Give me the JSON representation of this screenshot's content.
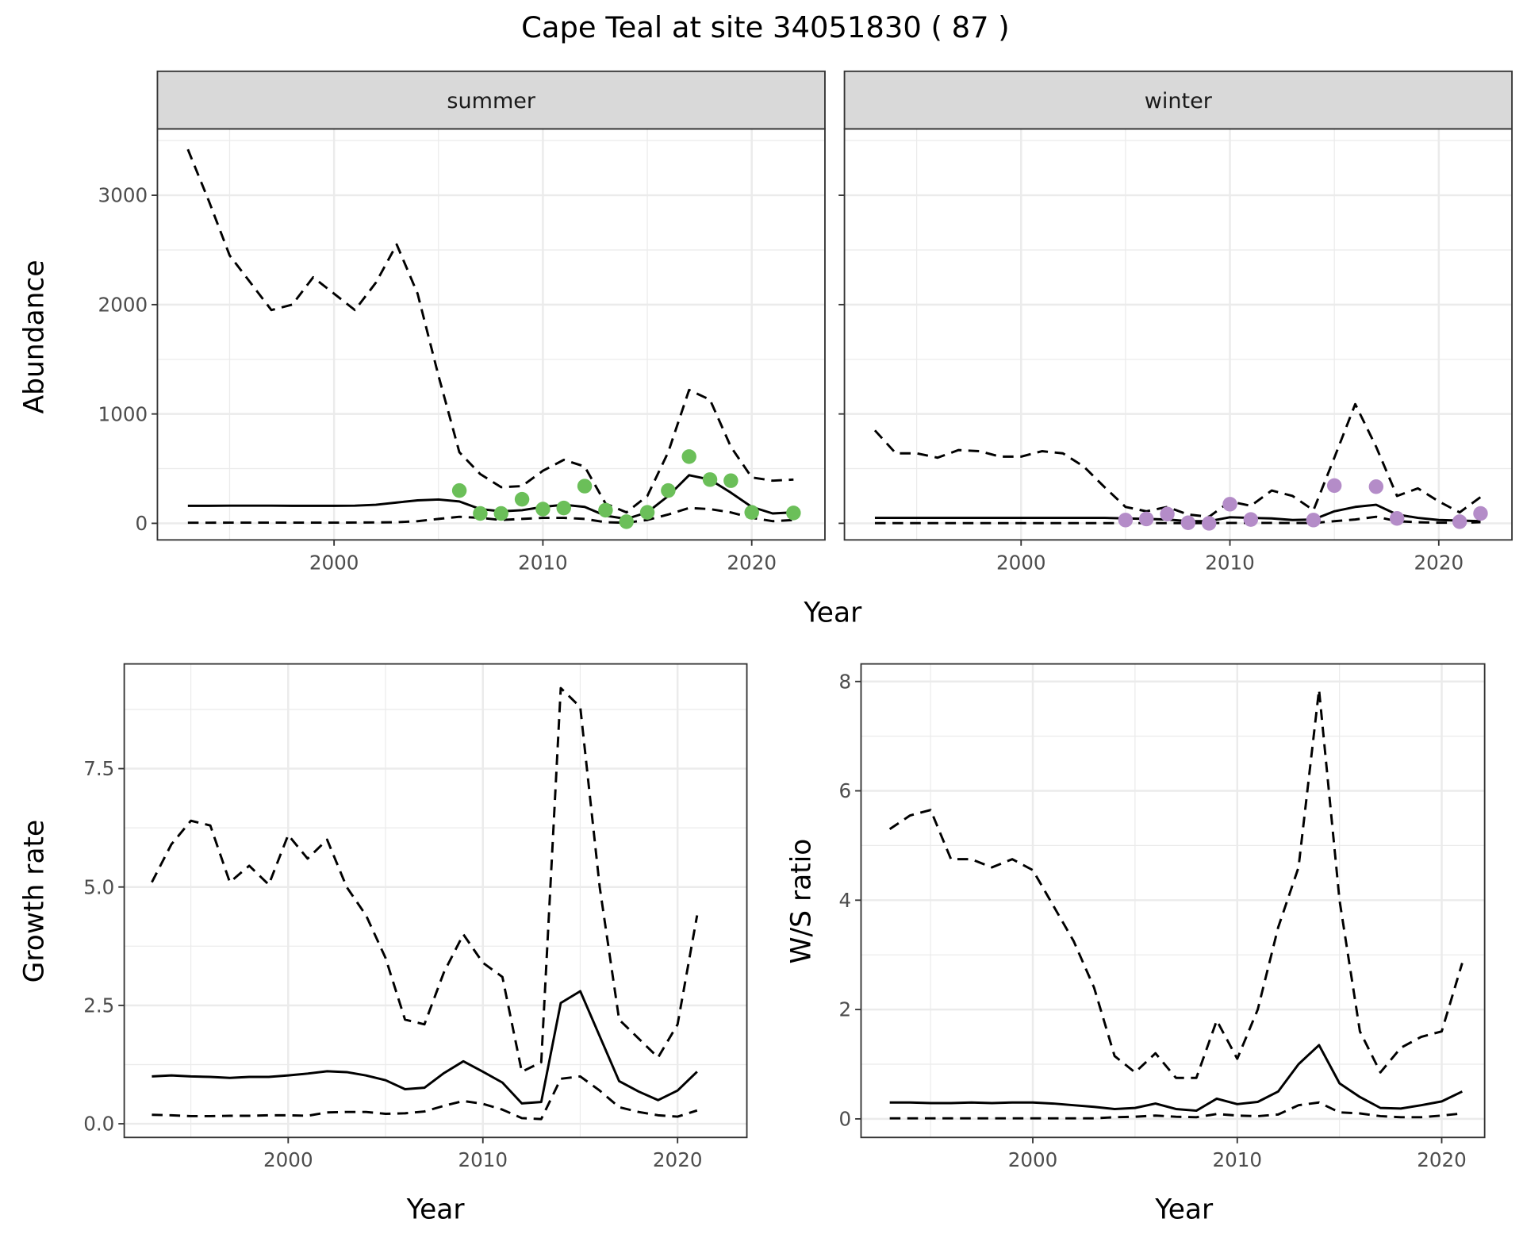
{
  "title": "Cape Teal at site 34051830 ( 87 )",
  "colors": {
    "summer_points": "#6BBF59",
    "winter_points": "#B48CC8",
    "line": "#000000",
    "grid": "#EBEBEB",
    "strip": "#D9D9D9"
  },
  "chart_data": [
    {
      "id": "summer",
      "type": "line",
      "strip_label": "summer",
      "xlabel": "Year",
      "ylabel": "Abundance",
      "x_ticks": [
        2000,
        2010,
        2020
      ],
      "y_ticks": [
        0,
        1000,
        2000,
        3000
      ],
      "y_tick_labels": [
        "0",
        "1000",
        "2000",
        "3000"
      ],
      "grid": true,
      "x": [
        1993,
        1994,
        1995,
        1996,
        1997,
        1998,
        1999,
        2000,
        2001,
        2002,
        2003,
        2004,
        2005,
        2006,
        2007,
        2008,
        2009,
        2010,
        2011,
        2012,
        2013,
        2014,
        2015,
        2016,
        2017,
        2018,
        2019,
        2020,
        2021,
        2022
      ],
      "series": [
        {
          "name": "upper",
          "style": "dashed",
          "values": [
            3420,
            2950,
            2450,
            2200,
            1950,
            2000,
            2250,
            2100,
            1950,
            2200,
            2550,
            2100,
            1350,
            650,
            450,
            330,
            340,
            480,
            580,
            520,
            180,
            100,
            250,
            650,
            1220,
            1130,
            700,
            420,
            390,
            400
          ]
        },
        {
          "name": "estimate",
          "style": "solid",
          "values": [
            160,
            160,
            162,
            162,
            162,
            160,
            160,
            160,
            162,
            170,
            190,
            210,
            218,
            200,
            130,
            110,
            120,
            150,
            170,
            150,
            70,
            40,
            100,
            250,
            440,
            400,
            280,
            150,
            90,
            100
          ]
        },
        {
          "name": "lower",
          "style": "dashed",
          "values": [
            5,
            5,
            6,
            6,
            6,
            6,
            6,
            6,
            7,
            8,
            10,
            20,
            40,
            60,
            50,
            30,
            40,
            50,
            50,
            40,
            10,
            5,
            30,
            80,
            140,
            130,
            100,
            50,
            20,
            30
          ]
        }
      ],
      "points": {
        "name": "counts",
        "x": [
          2006,
          2007,
          2008,
          2009,
          2010,
          2011,
          2012,
          2013,
          2014,
          2015,
          2016,
          2017,
          2018,
          2019,
          2020,
          2022
        ],
        "y": [
          300,
          90,
          90,
          220,
          130,
          140,
          340,
          120,
          15,
          100,
          300,
          610,
          400,
          390,
          100,
          95
        ]
      }
    },
    {
      "id": "winter",
      "type": "line",
      "strip_label": "winter",
      "xlabel": "Year",
      "ylabel": "Abundance",
      "x_ticks": [
        2000,
        2010,
        2020
      ],
      "y_ticks": [
        0,
        1000,
        2000,
        3000
      ],
      "y_tick_labels": [],
      "grid": true,
      "x": [
        1993,
        1994,
        1995,
        1996,
        1997,
        1998,
        1999,
        2000,
        2001,
        2002,
        2003,
        2004,
        2005,
        2006,
        2007,
        2008,
        2009,
        2010,
        2011,
        2012,
        2013,
        2014,
        2015,
        2016,
        2017,
        2018,
        2019,
        2020,
        2021,
        2022
      ],
      "series": [
        {
          "name": "upper",
          "style": "dashed",
          "values": [
            850,
            640,
            640,
            600,
            670,
            660,
            610,
            610,
            660,
            640,
            520,
            330,
            150,
            110,
            150,
            80,
            60,
            200,
            160,
            300,
            250,
            120,
            600,
            1090,
            700,
            250,
            320,
            200,
            100,
            240
          ]
        },
        {
          "name": "estimate",
          "style": "solid",
          "values": [
            50,
            50,
            50,
            50,
            50,
            50,
            50,
            50,
            50,
            50,
            50,
            50,
            45,
            40,
            35,
            20,
            20,
            55,
            50,
            45,
            30,
            35,
            110,
            150,
            170,
            80,
            50,
            30,
            25,
            20
          ]
        },
        {
          "name": "lower",
          "style": "dashed",
          "values": [
            2,
            2,
            2,
            2,
            2,
            2,
            2,
            2,
            2,
            2,
            2,
            2,
            2,
            2,
            2,
            2,
            2,
            4,
            4,
            4,
            3,
            3,
            20,
            35,
            60,
            20,
            10,
            5,
            5,
            10
          ]
        }
      ],
      "points": {
        "name": "counts",
        "x": [
          2005,
          2006,
          2007,
          2008,
          2009,
          2010,
          2011,
          2014,
          2015,
          2017,
          2018,
          2021,
          2022
        ],
        "y": [
          30,
          40,
          85,
          5,
          0,
          175,
          35,
          30,
          345,
          335,
          45,
          15,
          90
        ]
      }
    },
    {
      "id": "growth",
      "type": "line",
      "xlabel": "Year",
      "ylabel": "Growth rate",
      "x_ticks": [
        2000,
        2010,
        2020
      ],
      "y_ticks": [
        0,
        2.5,
        5,
        7.5
      ],
      "y_tick_labels": [
        "0.0",
        "2.5",
        "5.0",
        "7.5"
      ],
      "grid": true,
      "x": [
        1993,
        1994,
        1995,
        1996,
        1997,
        1998,
        1999,
        2000,
        2001,
        2002,
        2003,
        2004,
        2005,
        2006,
        2007,
        2008,
        2009,
        2010,
        2011,
        2012,
        2013,
        2014,
        2015,
        2016,
        2017,
        2018,
        2019,
        2020,
        2021
      ],
      "series": [
        {
          "name": "upper",
          "style": "dashed",
          "values": [
            5.1,
            5.9,
            6.4,
            6.3,
            5.1,
            5.45,
            5.05,
            6.1,
            5.6,
            6.0,
            5.0,
            4.4,
            3.5,
            2.2,
            2.1,
            3.2,
            4.0,
            3.4,
            3.1,
            1.1,
            1.3,
            9.2,
            8.8,
            5.0,
            2.2,
            1.8,
            1.4,
            2.1,
            4.4
          ]
        },
        {
          "name": "estimate",
          "style": "solid",
          "values": [
            1.0,
            1.02,
            1.0,
            0.99,
            0.97,
            0.99,
            0.99,
            1.02,
            1.06,
            1.11,
            1.09,
            1.02,
            0.92,
            0.73,
            0.76,
            1.07,
            1.32,
            1.1,
            0.87,
            0.43,
            0.46,
            2.55,
            2.8,
            1.85,
            0.9,
            0.68,
            0.5,
            0.7,
            1.1
          ]
        },
        {
          "name": "lower",
          "style": "dashed",
          "values": [
            0.19,
            0.18,
            0.16,
            0.16,
            0.17,
            0.17,
            0.18,
            0.18,
            0.17,
            0.24,
            0.25,
            0.25,
            0.21,
            0.22,
            0.26,
            0.38,
            0.48,
            0.42,
            0.3,
            0.12,
            0.1,
            0.95,
            1.0,
            0.7,
            0.35,
            0.25,
            0.18,
            0.15,
            0.28
          ]
        }
      ]
    },
    {
      "id": "ratio",
      "type": "line",
      "xlabel": "Year",
      "ylabel": "W/S ratio",
      "x_ticks": [
        2000,
        2010,
        2020
      ],
      "y_ticks": [
        0,
        2,
        4,
        6,
        8
      ],
      "y_tick_labels": [
        "0",
        "2",
        "4",
        "6",
        "8"
      ],
      "grid": true,
      "x": [
        1993,
        1994,
        1995,
        1996,
        1997,
        1998,
        1999,
        2000,
        2001,
        2002,
        2003,
        2004,
        2005,
        2006,
        2007,
        2008,
        2009,
        2010,
        2011,
        2012,
        2013,
        2014,
        2015,
        2016,
        2017,
        2018,
        2019,
        2020,
        2021
      ],
      "series": [
        {
          "name": "upper",
          "style": "dashed",
          "values": [
            5.3,
            5.55,
            5.65,
            4.75,
            4.75,
            4.6,
            4.75,
            4.55,
            3.9,
            3.25,
            2.4,
            1.15,
            0.85,
            1.2,
            0.75,
            0.75,
            1.8,
            1.1,
            2.0,
            3.5,
            4.6,
            7.85,
            4.0,
            1.6,
            0.85,
            1.3,
            1.5,
            1.6,
            2.85
          ]
        },
        {
          "name": "estimate",
          "style": "solid",
          "values": [
            0.3,
            0.3,
            0.29,
            0.29,
            0.3,
            0.29,
            0.3,
            0.3,
            0.28,
            0.25,
            0.22,
            0.18,
            0.2,
            0.28,
            0.18,
            0.15,
            0.37,
            0.27,
            0.31,
            0.5,
            1.0,
            1.35,
            0.65,
            0.4,
            0.2,
            0.19,
            0.25,
            0.32,
            0.5
          ]
        },
        {
          "name": "lower",
          "style": "dashed",
          "values": [
            0.01,
            0.01,
            0.01,
            0.01,
            0.01,
            0.01,
            0.01,
            0.01,
            0.01,
            0.01,
            0.01,
            0.03,
            0.04,
            0.06,
            0.04,
            0.03,
            0.09,
            0.06,
            0.05,
            0.08,
            0.25,
            0.3,
            0.12,
            0.1,
            0.05,
            0.03,
            0.03,
            0.06,
            0.1
          ]
        }
      ]
    }
  ],
  "labels": {
    "top_xlabel": "Year",
    "top_ylabel": "Abundance",
    "bl_xlabel": "Year",
    "bl_ylabel": "Growth rate",
    "br_xlabel": "Year",
    "br_ylabel": "W/S ratio"
  }
}
